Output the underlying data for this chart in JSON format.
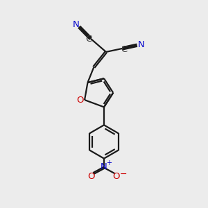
{
  "bg_color": "#ececec",
  "bond_color": "#1a1a1a",
  "O_color": "#cc0000",
  "N_color": "#0000cc",
  "C_color": "#3a3a3a",
  "line_width": 1.6,
  "figsize": [
    3.0,
    3.0
  ],
  "dpi": 100,
  "xlim": [
    0,
    10
  ],
  "ylim": [
    0,
    10
  ]
}
